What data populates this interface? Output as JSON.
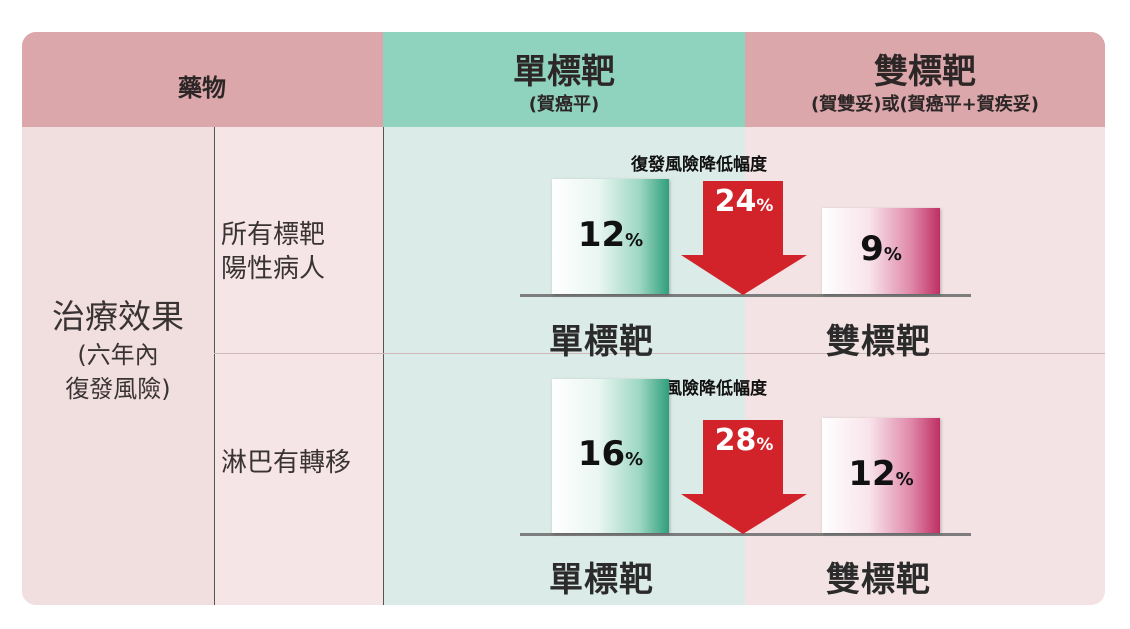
{
  "header": {
    "drug_label": "藥物",
    "single_title": "單標靶",
    "single_sub": "(賀癌平)",
    "dual_title": "雙標靶",
    "dual_sub": "(賀雙妥)或(賀癌平+賀疾妥)"
  },
  "outcome": {
    "title": "治療效果",
    "sub_line1": "(六年內",
    "sub_line2": "復發風險)"
  },
  "rows": [
    {
      "label_line1": "所有標靶",
      "label_line2": "陽性病人"
    },
    {
      "label_line1": "淋巴有轉移"
    }
  ],
  "colors": {
    "header_pink": "#dba7ab",
    "header_green": "#8fd2bd",
    "arrow_red": "#d2232a",
    "bar_green": "#2f9f7b",
    "bar_pink": "#be2f63"
  },
  "chart_data": [
    {
      "type": "bar",
      "title": "復發風險降低幅度",
      "categories": [
        "單標靶",
        "雙標靶"
      ],
      "values": [
        12,
        9
      ],
      "value_labels": [
        "12",
        "9"
      ],
      "unit": "%",
      "reduction": "24",
      "reduction_unit": "%"
    },
    {
      "type": "bar",
      "title": "復發風險降低幅度",
      "categories": [
        "單標靶",
        "雙標靶"
      ],
      "values": [
        16,
        12
      ],
      "value_labels": [
        "16",
        "12"
      ],
      "unit": "%",
      "reduction": "28",
      "reduction_unit": "%"
    }
  ]
}
